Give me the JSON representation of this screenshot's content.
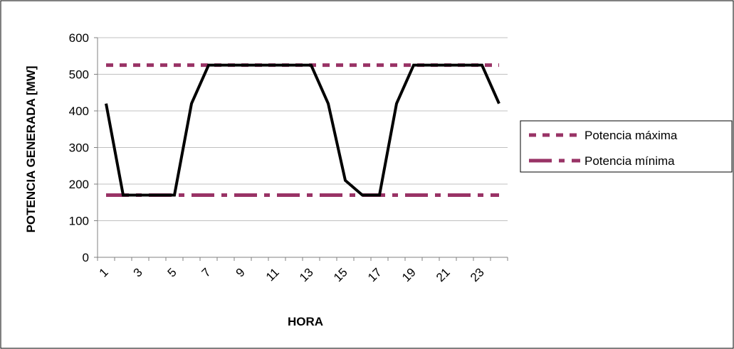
{
  "chart_data": {
    "type": "line",
    "xlabel": "HORA",
    "ylabel": "POTENCIA GENERADA [MW]",
    "ylim": [
      0,
      600
    ],
    "yticks": [
      "0",
      "100",
      "200",
      "300",
      "400",
      "500",
      "600"
    ],
    "categories": [
      1,
      2,
      3,
      4,
      5,
      6,
      7,
      8,
      9,
      10,
      11,
      12,
      13,
      14,
      15,
      16,
      17,
      18,
      19,
      20,
      21,
      22,
      23,
      24
    ],
    "xtick_labels": [
      "1",
      "3",
      "5",
      "7",
      "9",
      "11",
      "13",
      "15",
      "17",
      "19",
      "21",
      "23"
    ],
    "grid": "horizontal",
    "legend_position": "right",
    "series": [
      {
        "values": [
          420,
          170,
          170,
          170,
          170,
          420,
          525,
          525,
          525,
          525,
          525,
          525,
          525,
          420,
          210,
          170,
          170,
          420,
          525,
          525,
          525,
          525,
          525,
          420
        ],
        "color": "#000000",
        "style": "solid"
      },
      {
        "name": "Potencia máxima",
        "values": [
          525,
          525,
          525,
          525,
          525,
          525,
          525,
          525,
          525,
          525,
          525,
          525,
          525,
          525,
          525,
          525,
          525,
          525,
          525,
          525,
          525,
          525,
          525,
          525
        ],
        "color": "#993366",
        "style": "dotted"
      },
      {
        "name": "Potencia mínima",
        "values": [
          170,
          170,
          170,
          170,
          170,
          170,
          170,
          170,
          170,
          170,
          170,
          170,
          170,
          170,
          170,
          170,
          170,
          170,
          170,
          170,
          170,
          170,
          170,
          170
        ],
        "color": "#993366",
        "style": "dash-dot"
      }
    ]
  }
}
